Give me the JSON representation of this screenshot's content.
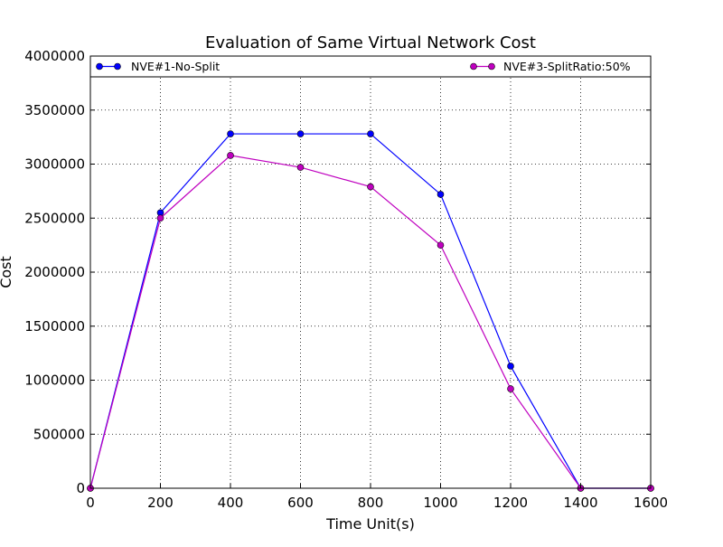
{
  "chart_data": {
    "type": "line",
    "title": "Evaluation of Same Virtual Network Cost",
    "xlabel": "Time Unit(s)",
    "ylabel": "Cost",
    "xlim": [
      0,
      1600
    ],
    "ylim": [
      0,
      4000000
    ],
    "x": [
      0,
      200,
      400,
      600,
      800,
      1000,
      1200,
      1400,
      1600
    ],
    "x_ticks": [
      "0",
      "200",
      "400",
      "600",
      "800",
      "1000",
      "1200",
      "1400",
      "1600"
    ],
    "y_tick_values": [
      0,
      500000,
      1000000,
      1500000,
      2000000,
      2500000,
      3000000,
      3500000,
      4000000
    ],
    "y_ticks": [
      "0",
      "500000",
      "1000000",
      "1500000",
      "2000000",
      "2500000",
      "3000000",
      "3500000",
      "4000000"
    ],
    "grid": true,
    "legend_position": "top",
    "series": [
      {
        "name": "NVE#1-No-Split",
        "color": "#0000ff",
        "marker": "circle",
        "values": [
          0,
          2550000,
          3280000,
          3280000,
          3280000,
          2720000,
          1130000,
          0,
          0
        ]
      },
      {
        "name": "NVE#3-SplitRatio:50%",
        "color": "#bf00bf",
        "marker": "circle",
        "values": [
          0,
          2500000,
          3080000,
          2970000,
          2790000,
          2250000,
          920000,
          0,
          0
        ]
      }
    ]
  }
}
